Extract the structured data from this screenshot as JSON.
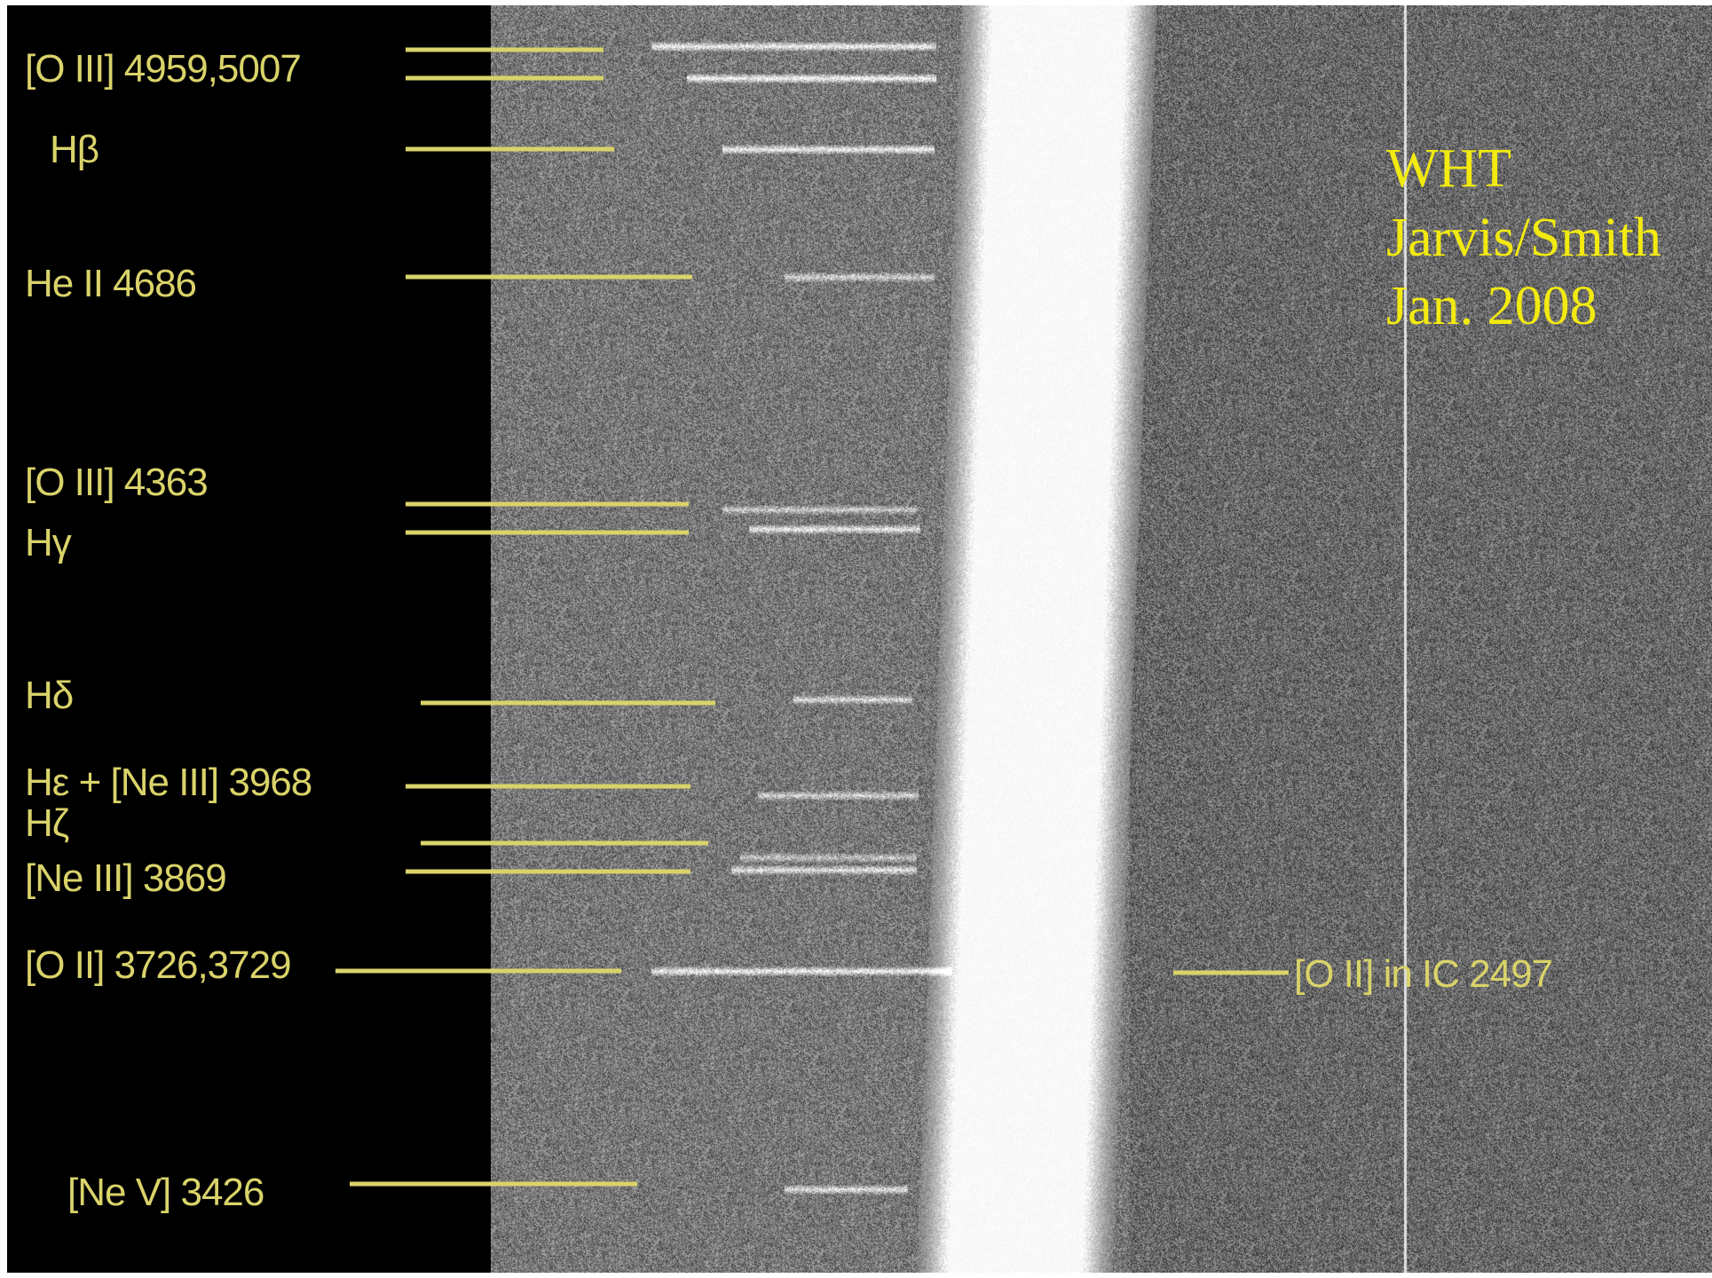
{
  "colors": {
    "annotation_yellow": "#d9d36a",
    "credit_yellow": "#f2ea10",
    "background_left": "#000000"
  },
  "emission_lines": [
    {
      "id": "oiii-4959-5007",
      "label": "[O III] 4959,5007"
    },
    {
      "id": "hbeta",
      "label": "Hβ"
    },
    {
      "id": "heii-4686",
      "label": "He II 4686"
    },
    {
      "id": "oiii-4363",
      "label": "[O III] 4363"
    },
    {
      "id": "hgamma",
      "label": "Hγ"
    },
    {
      "id": "hdelta",
      "label": "Hδ"
    },
    {
      "id": "hepsilon-neiii-3968",
      "label": "Hε + [Ne III] 3968"
    },
    {
      "id": "hzeta",
      "label": "Hζ"
    },
    {
      "id": "neiii-3869",
      "label": "[Ne III] 3869"
    },
    {
      "id": "oii-3726-3729",
      "label": "[O II] 3726,3729"
    },
    {
      "id": "nev-3426",
      "label": "[Ne V] 3426"
    }
  ],
  "galaxy_annotation": {
    "label": "[O II] in IC 2497"
  },
  "credit": {
    "telescope": "WHT",
    "observers": "Jarvis/Smith",
    "date": "Jan. 2008"
  }
}
